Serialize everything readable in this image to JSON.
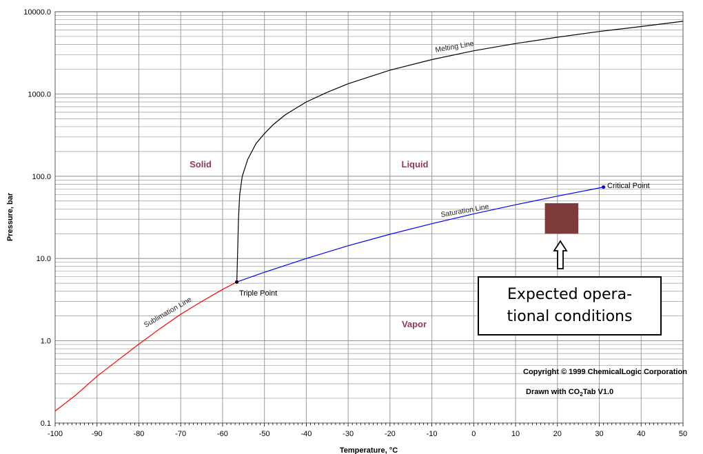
{
  "chart_data": {
    "type": "line",
    "xlabel": "Temperature, °C",
    "ylabel": "Pressure, bar",
    "x_ticks": [
      "-100",
      "-90",
      "-80",
      "-70",
      "-60",
      "-50",
      "-40",
      "-30",
      "-20",
      "-10",
      "0",
      "10",
      "20",
      "30",
      "40",
      "50"
    ],
    "y_ticks": [
      "0.1",
      "1.0",
      "10.0",
      "100.0",
      "1000.0",
      "10000.0"
    ],
    "xlim": [
      -100,
      50
    ],
    "ylim": [
      0.1,
      10000
    ],
    "y_scale": "log",
    "grid": true,
    "series": [
      {
        "name": "Sublimation Line",
        "color": "#ff0000",
        "points": [
          [
            -100,
            0.14
          ],
          [
            -95,
            0.22
          ],
          [
            -90,
            0.37
          ],
          [
            -85,
            0.58
          ],
          [
            -80,
            0.91
          ],
          [
            -75,
            1.4
          ],
          [
            -70,
            2.1
          ],
          [
            -65,
            3.0
          ],
          [
            -60,
            4.2
          ],
          [
            -56.6,
            5.18
          ]
        ]
      },
      {
        "name": "Saturation Line",
        "color": "#0000ff",
        "points": [
          [
            -56.6,
            5.18
          ],
          [
            -50,
            6.8
          ],
          [
            -40,
            10.0
          ],
          [
            -30,
            14.3
          ],
          [
            -20,
            19.7
          ],
          [
            -10,
            26.5
          ],
          [
            0,
            34.9
          ],
          [
            10,
            45.0
          ],
          [
            20,
            57.3
          ],
          [
            31,
            73.8
          ]
        ]
      },
      {
        "name": "Melting Line",
        "color": "#000000",
        "points": [
          [
            -56.6,
            5.18
          ],
          [
            -56.4,
            12
          ],
          [
            -56.2,
            30
          ],
          [
            -55.9,
            60
          ],
          [
            -55.3,
            100
          ],
          [
            -54,
            160
          ],
          [
            -52,
            250
          ],
          [
            -50,
            330
          ],
          [
            -48,
            420
          ],
          [
            -45,
            560
          ],
          [
            -40,
            800
          ],
          [
            -35,
            1050
          ],
          [
            -30,
            1330
          ],
          [
            -20,
            1950
          ],
          [
            -10,
            2620
          ],
          [
            0,
            3350
          ],
          [
            10,
            4100
          ],
          [
            20,
            4900
          ],
          [
            30,
            5750
          ],
          [
            40,
            6600
          ],
          [
            50,
            7650
          ]
        ]
      }
    ],
    "region_labels": [
      "Solid",
      "Liquid",
      "Vapor"
    ],
    "annotations": {
      "triple_point": {
        "label": "Triple Point",
        "x": -56.6,
        "y": 5.18
      },
      "critical_point": {
        "label": "Critical Point",
        "x": 31,
        "y": 73.8
      },
      "operating_region": {
        "color": "#7f3b3b",
        "x": [
          17,
          25
        ],
        "y": [
          20,
          47
        ]
      }
    },
    "copyright": "Copyright © 1999 ChemicalLogic Corporation",
    "drawn_with": {
      "prefix": "Drawn with CO",
      "subscript": "2",
      "suffix": "Tab V1.0"
    }
  },
  "callout": {
    "line1": "Expected opera-",
    "line2": "tional conditions"
  }
}
